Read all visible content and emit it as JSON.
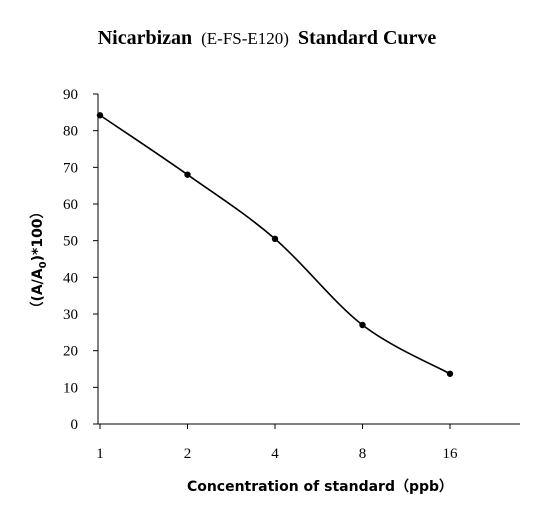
{
  "chart_data": {
    "type": "line",
    "title": "Nicarbizan (E-FS-E120) Standard Curve",
    "title_parts": {
      "bold_prefix": "Nicarbizan",
      "regular_middle": "(E-FS-E120)",
      "bold_suffix": "Standard Curve"
    },
    "xlabel": "Concentration of standard（ppb）",
    "ylabel": "（(A/A0)*100）",
    "ylabel_parts": {
      "prefix": "（(A/A",
      "subscript": "0",
      "suffix": ")*100）"
    },
    "categories": [
      "1",
      "2",
      "4",
      "8",
      "16"
    ],
    "series": [
      {
        "values": [
          84.2,
          68.0,
          50.5,
          27.0,
          13.7
        ]
      }
    ],
    "ylim": [
      0,
      90
    ],
    "yticks": [
      0,
      10,
      20,
      30,
      40,
      50,
      60,
      70,
      80,
      90
    ],
    "x_scale": "log2",
    "grid": false,
    "legend": "none",
    "line_color": "#000000",
    "marker_color": "#000000",
    "smooth": true
  }
}
